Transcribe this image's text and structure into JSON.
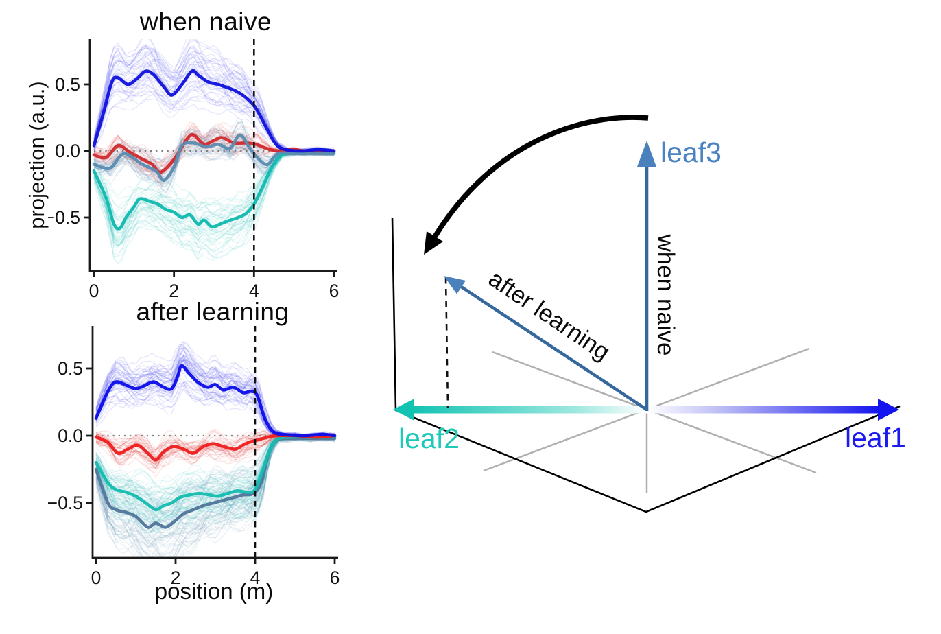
{
  "chart_data": [
    {
      "type": "line",
      "id": "when_naive",
      "title": "when naive",
      "xlabel": "",
      "ylabel": "projection (a.u.)",
      "xlim": [
        0,
        6
      ],
      "ylim": [
        -0.9,
        0.84
      ],
      "x_ticks": {
        "values": [
          0,
          2,
          4,
          6
        ],
        "labels": [
          "0",
          "2",
          "4",
          "6"
        ]
      },
      "y_ticks": {
        "values": [
          0.5,
          0,
          -0.5
        ],
        "labels": [
          "0.5",
          "0.0",
          "−0.5"
        ]
      },
      "zero_dotted_line_y": 0,
      "event_dashed_line_x": 4,
      "legend": "none",
      "series": [
        {
          "id": "teal",
          "name": "teal mean trace",
          "color": "#12b9b1",
          "bg_color": "#2cc4bc",
          "bg_count": 45,
          "bg_spread": 0.12,
          "bg_alpha": 0.13,
          "points": [
            [
              0,
              -0.15
            ],
            [
              0.3,
              -0.35
            ],
            [
              0.5,
              -0.55
            ],
            [
              0.65,
              -0.58
            ],
            [
              0.8,
              -0.5
            ],
            [
              1.0,
              -0.42
            ],
            [
              1.15,
              -0.36
            ],
            [
              1.4,
              -0.38
            ],
            [
              1.6,
              -0.4
            ],
            [
              1.8,
              -0.44
            ],
            [
              2.0,
              -0.46
            ],
            [
              2.2,
              -0.5
            ],
            [
              2.4,
              -0.48
            ],
            [
              2.6,
              -0.55
            ],
            [
              2.75,
              -0.52
            ],
            [
              2.95,
              -0.57
            ],
            [
              3.15,
              -0.55
            ],
            [
              3.4,
              -0.52
            ],
            [
              3.6,
              -0.5
            ],
            [
              3.8,
              -0.47
            ],
            [
              4.0,
              -0.4
            ],
            [
              4.2,
              -0.28
            ],
            [
              4.45,
              -0.12
            ],
            [
              4.7,
              -0.03
            ],
            [
              5.1,
              -0.01
            ],
            [
              5.6,
              -0.01
            ],
            [
              6,
              -0.01
            ]
          ]
        },
        {
          "id": "red",
          "name": "red mean trace",
          "color": "#d02c30",
          "bg_color": "#e04040",
          "bg_count": 30,
          "bg_spread": 0.09,
          "bg_alpha": 0.13,
          "points": [
            [
              0,
              -0.03
            ],
            [
              0.3,
              -0.05
            ],
            [
              0.6,
              0.04
            ],
            [
              0.9,
              -0.01
            ],
            [
              1.2,
              -0.06
            ],
            [
              1.45,
              -0.1
            ],
            [
              1.65,
              -0.16
            ],
            [
              1.9,
              -0.1
            ],
            [
              2.1,
              -0.02
            ],
            [
              2.35,
              0.1
            ],
            [
              2.5,
              0.12
            ],
            [
              2.75,
              0.05
            ],
            [
              3.0,
              0.08
            ],
            [
              3.2,
              0.1
            ],
            [
              3.5,
              0.06
            ],
            [
              3.8,
              0.06
            ],
            [
              4.05,
              0.05
            ],
            [
              4.3,
              0.02
            ],
            [
              4.6,
              0.0
            ],
            [
              5.0,
              0.01
            ],
            [
              5.5,
              -0.01
            ],
            [
              6,
              0.0
            ]
          ]
        },
        {
          "id": "steelblue",
          "name": "steel-blue mean trace",
          "color": "#5b8cb0",
          "bg_color": "#5b8cb0",
          "bg_count": 40,
          "bg_spread": 0.11,
          "bg_alpha": 0.13,
          "points": [
            [
              0,
              -0.1
            ],
            [
              0.4,
              -0.13
            ],
            [
              0.75,
              -0.02
            ],
            [
              1.2,
              -0.1
            ],
            [
              1.55,
              -0.15
            ],
            [
              1.75,
              -0.22
            ],
            [
              2.0,
              -0.12
            ],
            [
              2.2,
              0.04
            ],
            [
              2.5,
              0.06
            ],
            [
              2.8,
              0.03
            ],
            [
              3.1,
              0.05
            ],
            [
              3.4,
              0.02
            ],
            [
              3.65,
              0.12
            ],
            [
              3.9,
              0.02
            ],
            [
              4.15,
              -0.07
            ],
            [
              4.35,
              -0.1
            ],
            [
              4.6,
              -0.02
            ],
            [
              5.0,
              -0.02
            ],
            [
              5.5,
              -0.02
            ],
            [
              6,
              -0.02
            ]
          ]
        },
        {
          "id": "blue",
          "name": "blue mean trace",
          "color": "#1213dd",
          "bg_color": "#4444ee",
          "bg_count": 45,
          "bg_spread": 0.11,
          "bg_alpha": 0.13,
          "points": [
            [
              0,
              0.04
            ],
            [
              0.25,
              0.3
            ],
            [
              0.45,
              0.52
            ],
            [
              0.6,
              0.55
            ],
            [
              0.85,
              0.5
            ],
            [
              1.1,
              0.55
            ],
            [
              1.3,
              0.6
            ],
            [
              1.5,
              0.57
            ],
            [
              1.75,
              0.48
            ],
            [
              1.95,
              0.42
            ],
            [
              2.2,
              0.5
            ],
            [
              2.45,
              0.6
            ],
            [
              2.6,
              0.57
            ],
            [
              2.85,
              0.52
            ],
            [
              3.1,
              0.5
            ],
            [
              3.3,
              0.48
            ],
            [
              3.55,
              0.45
            ],
            [
              3.8,
              0.4
            ],
            [
              4.05,
              0.32
            ],
            [
              4.3,
              0.18
            ],
            [
              4.55,
              0.05
            ],
            [
              4.8,
              0.01
            ],
            [
              5.2,
              0.0
            ],
            [
              5.6,
              0.01
            ],
            [
              6,
              0.0
            ]
          ]
        }
      ]
    },
    {
      "type": "line",
      "id": "after_learning",
      "title": "after  learning",
      "xlabel": "position (m)",
      "ylabel": "",
      "xlim": [
        0,
        6
      ],
      "ylim": [
        -0.91,
        0.82
      ],
      "x_ticks": {
        "values": [
          0,
          2,
          4,
          6
        ],
        "labels": [
          "0",
          "2",
          "4",
          "6"
        ]
      },
      "y_ticks": {
        "values": [
          0.5,
          0,
          -0.5
        ],
        "labels": [
          "0.5",
          "0.0",
          "−0.5"
        ]
      },
      "zero_dotted_line_y": 0,
      "event_dashed_line_x": 4,
      "legend": "none",
      "series": [
        {
          "id": "steelblue",
          "name": "steel-blue mean trace",
          "color": "#51779c",
          "bg_color": "#5b8cb0",
          "bg_count": 65,
          "bg_spread": 0.15,
          "bg_alpha": 0.12,
          "points": [
            [
              0,
              -0.25
            ],
            [
              0.3,
              -0.5
            ],
            [
              0.5,
              -0.55
            ],
            [
              0.75,
              -0.57
            ],
            [
              1.0,
              -0.6
            ],
            [
              1.3,
              -0.68
            ],
            [
              1.5,
              -0.65
            ],
            [
              1.75,
              -0.68
            ],
            [
              2.0,
              -0.63
            ],
            [
              2.2,
              -0.58
            ],
            [
              2.45,
              -0.55
            ],
            [
              2.7,
              -0.52
            ],
            [
              2.95,
              -0.5
            ],
            [
              3.2,
              -0.48
            ],
            [
              3.45,
              -0.46
            ],
            [
              3.7,
              -0.44
            ],
            [
              3.95,
              -0.43
            ],
            [
              4.15,
              -0.35
            ],
            [
              4.35,
              -0.12
            ],
            [
              4.55,
              -0.03
            ],
            [
              4.9,
              -0.02
            ],
            [
              5.4,
              -0.02
            ],
            [
              6,
              -0.02
            ]
          ]
        },
        {
          "id": "teal",
          "name": "teal mean trace",
          "color": "#16bcb0",
          "bg_color": "#2cc4bc",
          "bg_count": 50,
          "bg_spread": 0.13,
          "bg_alpha": 0.12,
          "points": [
            [
              0,
              -0.2
            ],
            [
              0.3,
              -0.35
            ],
            [
              0.5,
              -0.4
            ],
            [
              0.75,
              -0.42
            ],
            [
              1.0,
              -0.45
            ],
            [
              1.25,
              -0.5
            ],
            [
              1.5,
              -0.55
            ],
            [
              1.7,
              -0.52
            ],
            [
              1.9,
              -0.5
            ],
            [
              2.1,
              -0.46
            ],
            [
              2.35,
              -0.44
            ],
            [
              2.6,
              -0.43
            ],
            [
              2.85,
              -0.44
            ],
            [
              3.05,
              -0.45
            ],
            [
              3.3,
              -0.43
            ],
            [
              3.55,
              -0.41
            ],
            [
              3.8,
              -0.42
            ],
            [
              4.0,
              -0.4
            ],
            [
              4.2,
              -0.25
            ],
            [
              4.4,
              -0.08
            ],
            [
              4.6,
              -0.02
            ],
            [
              5.0,
              -0.01
            ],
            [
              5.5,
              -0.01
            ],
            [
              6,
              -0.01
            ]
          ]
        },
        {
          "id": "red",
          "name": "red mean trace",
          "color": "#ee1f1f",
          "bg_color": "#e04040",
          "bg_count": 40,
          "bg_spread": 0.08,
          "bg_alpha": 0.13,
          "points": [
            [
              0,
              -0.01
            ],
            [
              0.3,
              -0.05
            ],
            [
              0.55,
              -0.13
            ],
            [
              0.8,
              -0.1
            ],
            [
              1.05,
              -0.07
            ],
            [
              1.3,
              -0.13
            ],
            [
              1.5,
              -0.18
            ],
            [
              1.7,
              -0.12
            ],
            [
              1.95,
              -0.08
            ],
            [
              2.2,
              -0.1
            ],
            [
              2.45,
              -0.13
            ],
            [
              2.7,
              -0.08
            ],
            [
              2.95,
              -0.06
            ],
            [
              3.2,
              -0.08
            ],
            [
              3.5,
              -0.1
            ],
            [
              3.75,
              -0.06
            ],
            [
              3.95,
              -0.04
            ],
            [
              4.2,
              -0.02
            ],
            [
              4.5,
              0.0
            ],
            [
              5.0,
              0.0
            ],
            [
              5.5,
              -0.01
            ],
            [
              6,
              0.0
            ]
          ]
        },
        {
          "id": "blue",
          "name": "blue mean trace",
          "color": "#0e0fe8",
          "bg_color": "#4444ee",
          "bg_count": 50,
          "bg_spread": 0.1,
          "bg_alpha": 0.14,
          "points": [
            [
              0,
              0.13
            ],
            [
              0.3,
              0.33
            ],
            [
              0.5,
              0.4
            ],
            [
              0.8,
              0.37
            ],
            [
              1.0,
              0.35
            ],
            [
              1.2,
              0.37
            ],
            [
              1.45,
              0.4
            ],
            [
              1.7,
              0.36
            ],
            [
              1.9,
              0.35
            ],
            [
              2.05,
              0.44
            ],
            [
              2.15,
              0.52
            ],
            [
              2.35,
              0.46
            ],
            [
              2.55,
              0.4
            ],
            [
              2.8,
              0.36
            ],
            [
              3.0,
              0.38
            ],
            [
              3.2,
              0.34
            ],
            [
              3.45,
              0.36
            ],
            [
              3.7,
              0.32
            ],
            [
              3.9,
              0.33
            ],
            [
              4.05,
              0.3
            ],
            [
              4.25,
              0.12
            ],
            [
              4.45,
              0.03
            ],
            [
              4.7,
              0.01
            ],
            [
              5.2,
              0.0
            ],
            [
              5.7,
              0.01
            ],
            [
              6,
              0.0
            ]
          ]
        }
      ]
    }
  ],
  "schematic": {
    "axis_labels": [
      {
        "id": "leaf1",
        "label": "leaf1",
        "color": "#1b1bef"
      },
      {
        "id": "leaf2",
        "label": "leaf2",
        "color": "#1ec9b9"
      },
      {
        "id": "leaf3",
        "label": "leaf3",
        "color": "#4a82c4"
      }
    ],
    "vector_annotations": [
      {
        "id": "naive",
        "label": "when naive"
      },
      {
        "id": "learned",
        "label": "after learning"
      }
    ],
    "colors": {
      "vector_shaft": "#35689d",
      "vector_head": "#4a81bd",
      "leaf1_axis": "#1414ee",
      "leaf2_axis": "#12c3b2",
      "frame": "#000000",
      "grid": "#b0b0b0",
      "rotation_arrow": "#000000",
      "projection_dash": "#111111"
    }
  }
}
